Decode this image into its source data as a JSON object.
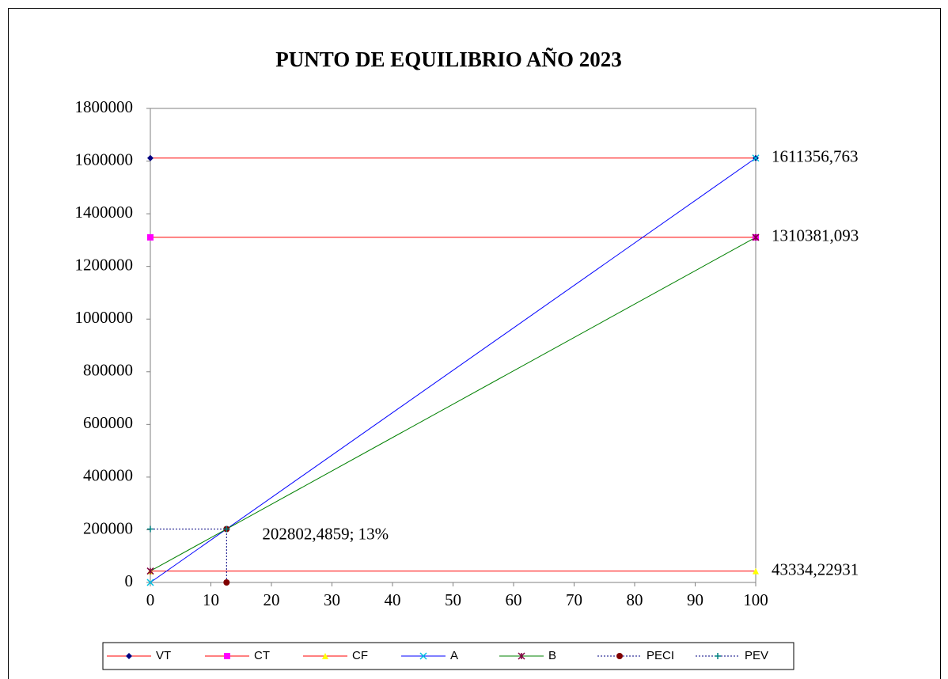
{
  "chart_data": {
    "type": "line",
    "title": "PUNTO DE EQUILIBRIO AÑO 2023",
    "xlim": [
      0,
      100
    ],
    "xticks": [
      0,
      10,
      20,
      30,
      40,
      50,
      60,
      70,
      80,
      90,
      100
    ],
    "ylim": [
      0,
      1800000
    ],
    "yticks": [
      0,
      200000,
      400000,
      600000,
      800000,
      1000000,
      1200000,
      1400000,
      1600000,
      1800000
    ],
    "grid": false,
    "legend": "bottom",
    "series": [
      {
        "name": "VT",
        "color": "#ff0000",
        "marker": "diamond",
        "marker_color": "#000080",
        "x": [
          0,
          100
        ],
        "values": [
          1611356.763,
          1611356.763
        ],
        "value_labels": [
          null,
          "1611356,763"
        ]
      },
      {
        "name": "CT",
        "color": "#ff0000",
        "marker": "square",
        "marker_color": "#ff00ff",
        "x": [
          0,
          100
        ],
        "values": [
          1310381.093,
          1310381.093
        ],
        "value_labels": [
          null,
          "1310381,093"
        ]
      },
      {
        "name": "CF",
        "color": "#ff0000",
        "marker": "triangle",
        "marker_color": "#ffff00",
        "x": [
          0,
          100
        ],
        "values": [
          43334.22931,
          43334.22931
        ],
        "value_labels": [
          null,
          "43334,22931"
        ]
      },
      {
        "name": "A",
        "color": "#0000ff",
        "marker": "x",
        "marker_color": "#00c0e0",
        "x": [
          0,
          100
        ],
        "values": [
          0,
          1611356.763
        ]
      },
      {
        "name": "B",
        "color": "#008000",
        "marker": "asterisk",
        "marker_color": "#800040",
        "x": [
          0,
          100
        ],
        "values": [
          43334.22931,
          1310381.093
        ]
      },
      {
        "name": "PECI",
        "color": "#000080",
        "dashed": true,
        "marker": "circle",
        "marker_color": "#800000",
        "x": [
          12.59,
          12.59
        ],
        "values": [
          0,
          202802.4859
        ],
        "value_labels": [
          null,
          "202802,4859; 13%"
        ]
      },
      {
        "name": "PEV",
        "color": "#000080",
        "dashed": true,
        "marker": "plus",
        "marker_color": "#008080",
        "x": [
          0,
          12.59
        ],
        "values": [
          202802.4859,
          202802.4859
        ]
      }
    ]
  }
}
